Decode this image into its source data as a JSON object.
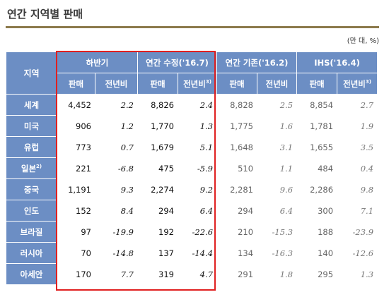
{
  "title": "연간 지역별 판매",
  "unit_note": "(만 대, %)",
  "header": {
    "region": "지역",
    "groups": [
      "하반기",
      "연간 수정('16.7)",
      "연간 기존('16.2)",
      "IHS('16.4)"
    ],
    "sales": "판매",
    "yoy": "전년비",
    "yoy_sup": "3)"
  },
  "rows": [
    {
      "region": "세계",
      "sup": "",
      "v": [
        "4,452",
        "2.2",
        "8,826",
        "2.4",
        "8,828",
        "2.5",
        "8,854",
        "2.7"
      ]
    },
    {
      "region": "미국",
      "sup": "",
      "v": [
        "906",
        "1.2",
        "1,770",
        "1.3",
        "1,775",
        "1.6",
        "1,781",
        "1.9"
      ]
    },
    {
      "region": "유럽",
      "sup": "",
      "v": [
        "773",
        "0.7",
        "1,679",
        "5.1",
        "1,648",
        "3.1",
        "1,655",
        "3.5"
      ]
    },
    {
      "region": "일본",
      "sup": "2)",
      "v": [
        "221",
        "-6.8",
        "475",
        "-5.9",
        "510",
        "1.1",
        "484",
        "0.4"
      ]
    },
    {
      "region": "중국",
      "sup": "",
      "v": [
        "1,191",
        "9.3",
        "2,274",
        "9.2",
        "2,281",
        "9.6",
        "2,286",
        "9.8"
      ]
    },
    {
      "region": "인도",
      "sup": "",
      "v": [
        "152",
        "8.4",
        "294",
        "6.4",
        "294",
        "6.4",
        "300",
        "7.1"
      ]
    },
    {
      "region": "브라질",
      "sup": "",
      "v": [
        "97",
        "-19.9",
        "192",
        "-22.6",
        "210",
        "-15.3",
        "188",
        "-23.9"
      ]
    },
    {
      "region": "러시아",
      "sup": "",
      "v": [
        "70",
        "-14.8",
        "137",
        "-14.4",
        "134",
        "-16.3",
        "140",
        "-12.6"
      ]
    },
    {
      "region": "아세안",
      "sup": "",
      "v": [
        "170",
        "7.7",
        "319",
        "4.7",
        "291",
        "1.8",
        "295",
        "1.3"
      ]
    }
  ],
  "colors": {
    "header_blue": "#6c8ec4",
    "highlight_red": "#e02020",
    "title_rule": "#8c7a4c"
  }
}
